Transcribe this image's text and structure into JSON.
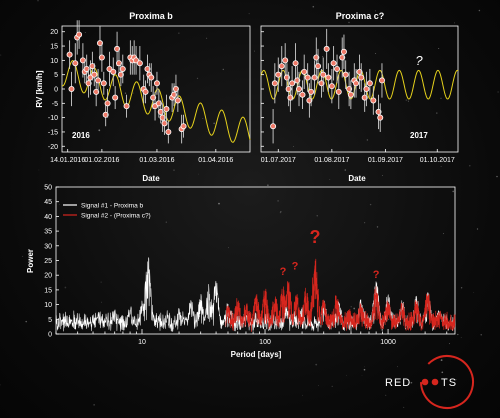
{
  "colors": {
    "background": "#0b0b0b",
    "rv_points": "#f07a68",
    "fit_curve": "#e6d21c",
    "signal_1": "#ffffff",
    "signal_2": "#d6261e",
    "axes": "#ffffff"
  },
  "chart_data": [
    {
      "type": "scatter",
      "title": "Proxima b",
      "xlabel": "Date",
      "ylabel": "RV [km/h]",
      "year_label": "2016",
      "x_ticks": [
        "14.01.2016",
        "01.02.2016",
        "01.03.2016",
        "01.04.2016"
      ],
      "x_tick_days": [
        0,
        18,
        47,
        78
      ],
      "xlim_days": [
        -3,
        96
      ],
      "ylim": [
        -22,
        22
      ],
      "y_ticks": [
        -20,
        -15,
        -10,
        -5,
        0,
        5,
        10,
        15,
        20
      ],
      "grid": false,
      "fit_curve": {
        "period_days": 11.2,
        "amplitude": 5,
        "offset": 5.5,
        "slope_per_day": -0.22
      },
      "points": [
        {
          "x": 1,
          "y": 12,
          "err": 5
        },
        {
          "x": 2,
          "y": 0,
          "err": 6
        },
        {
          "x": 4,
          "y": 9,
          "err": 7
        },
        {
          "x": 5,
          "y": 18,
          "err": 6
        },
        {
          "x": 6,
          "y": 19,
          "err": 5
        },
        {
          "x": 8,
          "y": 10,
          "err": 6
        },
        {
          "x": 9,
          "y": 6,
          "err": 4
        },
        {
          "x": 10,
          "y": 7,
          "err": 5
        },
        {
          "x": 11,
          "y": 2,
          "err": 5
        },
        {
          "x": 12,
          "y": 4,
          "err": 6
        },
        {
          "x": 13,
          "y": 8,
          "err": 5
        },
        {
          "x": 14,
          "y": 5,
          "err": 4
        },
        {
          "x": 15,
          "y": -1,
          "err": 5
        },
        {
          "x": 16,
          "y": 3,
          "err": 4
        },
        {
          "x": 17,
          "y": 16,
          "err": 6
        },
        {
          "x": 18,
          "y": 11,
          "err": 5
        },
        {
          "x": 19,
          "y": 2,
          "err": 4
        },
        {
          "x": 20,
          "y": -9,
          "err": 4
        },
        {
          "x": 21,
          "y": -5,
          "err": 5
        },
        {
          "x": 22,
          "y": 7,
          "err": 6
        },
        {
          "x": 24,
          "y": 6,
          "err": 5
        },
        {
          "x": 25,
          "y": -3,
          "err": 4
        },
        {
          "x": 26,
          "y": 14,
          "err": 6
        },
        {
          "x": 27,
          "y": 9,
          "err": 5
        },
        {
          "x": 28,
          "y": 5,
          "err": 4
        },
        {
          "x": 29,
          "y": 7,
          "err": 5
        },
        {
          "x": 31,
          "y": -6,
          "err": 4
        },
        {
          "x": 33,
          "y": 11,
          "err": 6
        },
        {
          "x": 34,
          "y": 10,
          "err": 5
        },
        {
          "x": 35,
          "y": 11,
          "err": 6
        },
        {
          "x": 36,
          "y": 10,
          "err": 5
        },
        {
          "x": 38,
          "y": 9,
          "err": 6
        },
        {
          "x": 40,
          "y": 0,
          "err": 5
        },
        {
          "x": 41,
          "y": -1,
          "err": 4
        },
        {
          "x": 42,
          "y": 7,
          "err": 5
        },
        {
          "x": 43,
          "y": 5,
          "err": 4
        },
        {
          "x": 44,
          "y": 4,
          "err": 5
        },
        {
          "x": 45,
          "y": -3,
          "err": 4
        },
        {
          "x": 46,
          "y": -6,
          "err": 5
        },
        {
          "x": 47,
          "y": 2,
          "err": 4
        },
        {
          "x": 48,
          "y": -5,
          "err": 5
        },
        {
          "x": 49,
          "y": -8,
          "err": 4
        },
        {
          "x": 50,
          "y": -10,
          "err": 5
        },
        {
          "x": 51,
          "y": -12,
          "err": 4
        },
        {
          "x": 52,
          "y": -7,
          "err": 5
        },
        {
          "x": 53,
          "y": -15,
          "err": 4
        },
        {
          "x": 55,
          "y": -3,
          "err": 5
        },
        {
          "x": 56,
          "y": -2,
          "err": 4
        },
        {
          "x": 57,
          "y": 0,
          "err": 5
        },
        {
          "x": 58,
          "y": -4,
          "err": 4
        },
        {
          "x": 60,
          "y": -14,
          "err": 5
        },
        {
          "x": 61,
          "y": -13,
          "err": 4
        }
      ]
    },
    {
      "type": "scatter",
      "title": "Proxima c?",
      "xlabel": "Date",
      "year_label": "2017",
      "annotation": "?",
      "x_ticks": [
        "01.07.2017",
        "01.08.2017",
        "01.09.2017",
        "01.10.2017"
      ],
      "x_tick_days": [
        0,
        31,
        62,
        92
      ],
      "xlim_days": [
        -10,
        104
      ],
      "ylim": [
        -22,
        22
      ],
      "grid": false,
      "fit_curve": {
        "period_days": 11.2,
        "amplitude": 5,
        "offset": 1.5,
        "slope_per_day": 0
      },
      "points": [
        {
          "x": -3,
          "y": -13,
          "err": 6
        },
        {
          "x": -2,
          "y": 2,
          "err": 7
        },
        {
          "x": 0,
          "y": 5,
          "err": 6
        },
        {
          "x": 2,
          "y": 8,
          "err": 7
        },
        {
          "x": 4,
          "y": 10,
          "err": 6
        },
        {
          "x": 5,
          "y": 4,
          "err": 5
        },
        {
          "x": 6,
          "y": 0,
          "err": 6
        },
        {
          "x": 7,
          "y": -3,
          "err": 5
        },
        {
          "x": 8,
          "y": 2,
          "err": 6
        },
        {
          "x": 10,
          "y": 9,
          "err": 7
        },
        {
          "x": 11,
          "y": 3,
          "err": 5
        },
        {
          "x": 12,
          "y": 0,
          "err": 6
        },
        {
          "x": 14,
          "y": -2,
          "err": 5
        },
        {
          "x": 15,
          "y": 6,
          "err": 6
        },
        {
          "x": 17,
          "y": 4,
          "err": 5
        },
        {
          "x": 18,
          "y": -4,
          "err": 6
        },
        {
          "x": 19,
          "y": -1,
          "err": 5
        },
        {
          "x": 21,
          "y": 4,
          "err": 6
        },
        {
          "x": 22,
          "y": 11,
          "err": 7
        },
        {
          "x": 23,
          "y": 8,
          "err": 6
        },
        {
          "x": 25,
          "y": 2,
          "err": 5
        },
        {
          "x": 26,
          "y": 5,
          "err": 6
        },
        {
          "x": 28,
          "y": 14,
          "err": 7
        },
        {
          "x": 29,
          "y": 4,
          "err": 5
        },
        {
          "x": 31,
          "y": 1,
          "err": 6
        },
        {
          "x": 32,
          "y": 9,
          "err": 6
        },
        {
          "x": 34,
          "y": 7,
          "err": 5
        },
        {
          "x": 35,
          "y": -1,
          "err": 6
        },
        {
          "x": 37,
          "y": 11,
          "err": 7
        },
        {
          "x": 38,
          "y": 13,
          "err": 6
        },
        {
          "x": 39,
          "y": 5,
          "err": 5
        },
        {
          "x": 41,
          "y": 0,
          "err": 6
        },
        {
          "x": 42,
          "y": -2,
          "err": 5
        },
        {
          "x": 44,
          "y": 3,
          "err": 6
        },
        {
          "x": 45,
          "y": 2,
          "err": 5
        },
        {
          "x": 47,
          "y": 6,
          "err": 6
        },
        {
          "x": 48,
          "y": 4,
          "err": 5
        },
        {
          "x": 50,
          "y": -3,
          "err": 5
        },
        {
          "x": 51,
          "y": 0,
          "err": 6
        },
        {
          "x": 53,
          "y": 2,
          "err": 5
        },
        {
          "x": 55,
          "y": -4,
          "err": 5
        },
        {
          "x": 58,
          "y": -8,
          "err": 6
        },
        {
          "x": 59,
          "y": -10,
          "err": 5
        },
        {
          "x": 60,
          "y": 3,
          "err": 6
        }
      ]
    },
    {
      "type": "line",
      "xlabel": "Period [days]",
      "ylabel": "Power",
      "x_scale": "log",
      "xlim": [
        2,
        3500
      ],
      "ylim": [
        0,
        50
      ],
      "x_ticks": [
        10,
        100,
        1000
      ],
      "y_ticks": [
        0,
        5,
        10,
        15,
        20,
        25,
        30,
        35,
        40,
        45,
        50
      ],
      "legend_position": "top-left",
      "grid": false,
      "annotation": "?",
      "series": [
        {
          "name": "Signal #1 - Proxima b",
          "peaks": [
            {
              "period": 2.2,
              "power": 5
            },
            {
              "period": 3,
              "power": 6
            },
            {
              "period": 4.5,
              "power": 8
            },
            {
              "period": 6,
              "power": 9
            },
            {
              "period": 8,
              "power": 10
            },
            {
              "period": 10,
              "power": 12
            },
            {
              "period": 11.2,
              "power": 28
            },
            {
              "period": 12.5,
              "power": 7
            },
            {
              "period": 16,
              "power": 6
            },
            {
              "period": 20,
              "power": 9
            },
            {
              "period": 25,
              "power": 12
            },
            {
              "period": 30,
              "power": 14
            },
            {
              "period": 35,
              "power": 17
            },
            {
              "period": 40,
              "power": 19
            },
            {
              "period": 50,
              "power": 11
            },
            {
              "period": 70,
              "power": 7
            },
            {
              "period": 100,
              "power": 6
            },
            {
              "period": 150,
              "power": 10
            },
            {
              "period": 200,
              "power": 9
            },
            {
              "period": 300,
              "power": 12
            },
            {
              "period": 400,
              "power": 11
            },
            {
              "period": 600,
              "power": 12
            },
            {
              "period": 800,
              "power": 19
            },
            {
              "period": 1000,
              "power": 14
            },
            {
              "period": 1300,
              "power": 12
            },
            {
              "period": 1700,
              "power": 13
            },
            {
              "period": 2100,
              "power": 15
            },
            {
              "period": 2600,
              "power": 9
            }
          ]
        },
        {
          "name": "Signal #2 - (Proxima c?)",
          "peaks": [
            {
              "period": 50,
              "power": 10
            },
            {
              "period": 60,
              "power": 13
            },
            {
              "period": 70,
              "power": 11
            },
            {
              "period": 85,
              "power": 14
            },
            {
              "period": 100,
              "power": 16
            },
            {
              "period": 120,
              "power": 14
            },
            {
              "period": 140,
              "power": 17
            },
            {
              "period": 155,
              "power": 19
            },
            {
              "period": 180,
              "power": 14
            },
            {
              "period": 215,
              "power": 16
            },
            {
              "period": 255,
              "power": 27
            },
            {
              "period": 300,
              "power": 12
            },
            {
              "period": 380,
              "power": 14
            },
            {
              "period": 480,
              "power": 9
            },
            {
              "period": 600,
              "power": 11
            },
            {
              "period": 800,
              "power": 17
            },
            {
              "period": 1000,
              "power": 12
            },
            {
              "period": 1300,
              "power": 11
            },
            {
              "period": 1700,
              "power": 12
            },
            {
              "period": 2100,
              "power": 15
            },
            {
              "period": 2600,
              "power": 8
            }
          ],
          "question_marks": [
            {
              "period": 140,
              "power": 20,
              "size": "small"
            },
            {
              "period": 175,
              "power": 22,
              "size": "small"
            },
            {
              "period": 255,
              "power": 31,
              "size": "large"
            },
            {
              "period": 800,
              "power": 19,
              "size": "small"
            }
          ]
        }
      ]
    }
  ],
  "logo": {
    "text_left": "RED",
    "text_right": "TS"
  }
}
